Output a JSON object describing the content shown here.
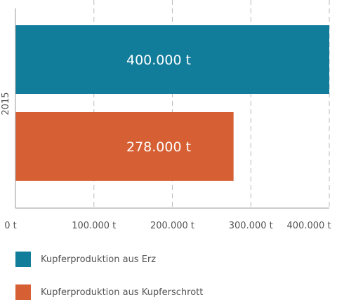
{
  "chart_data": {
    "type": "bar",
    "orientation": "horizontal",
    "categories": [
      "2015"
    ],
    "series": [
      {
        "name": "Kupferproduktion aus Erz",
        "values": [
          400000
        ],
        "value_label": "400.000 t",
        "color": "#117d9b"
      },
      {
        "name": "Kupferproduktion aus Kupferschrott",
        "values": [
          278000
        ],
        "value_label": "278.000 t",
        "color": "#d65f33"
      }
    ],
    "x_ticks": [
      {
        "value": 0,
        "label": "0 t"
      },
      {
        "value": 100000,
        "label": "100.000 t"
      },
      {
        "value": 200000,
        "label": "200.000 t"
      },
      {
        "value": 300000,
        "label": "300.000 t"
      },
      {
        "value": 400000,
        "label": "400.000 t"
      }
    ],
    "xlim": [
      0,
      400000
    ],
    "grid": true,
    "grid_style": "dashed-vertical",
    "legend_position": "bottom",
    "title": "",
    "xlabel": "",
    "ylabel": ""
  },
  "colors": {
    "axis": "#999999",
    "grid": "#bbbbbb",
    "text": "#555555",
    "bar_label": "#ffffff"
  }
}
